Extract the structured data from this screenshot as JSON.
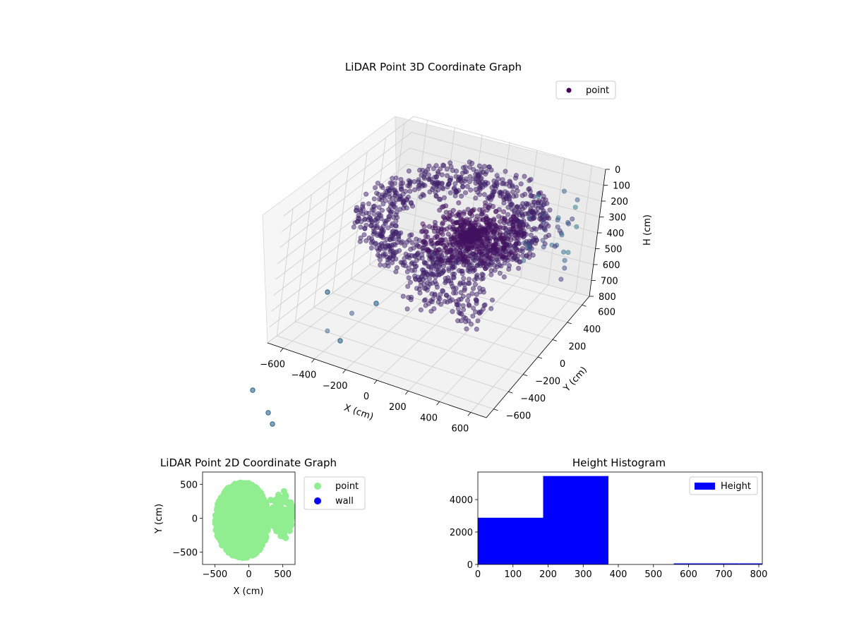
{
  "chart_data": [
    {
      "type": "scatter",
      "projection": "3d",
      "title": "LiDAR Point 3D Coordinate Graph",
      "xlabel": "X (cm)",
      "ylabel": "Y (cm)",
      "zlabel": "H (cm)",
      "xlim": [
        -700,
        700
      ],
      "ylim": [
        -700,
        700
      ],
      "zlim": [
        0,
        800
      ],
      "z_inverted": true,
      "x_ticks": [
        "−600",
        "−400",
        "−200",
        "0",
        "200",
        "400",
        "600"
      ],
      "y_ticks": [
        "−600",
        "−400",
        "−200",
        "0",
        "200",
        "400",
        "600"
      ],
      "z_ticks": [
        "0",
        "100",
        "200",
        "300",
        "400",
        "500",
        "600",
        "700",
        "800"
      ],
      "grid": true,
      "legend": {
        "placement": "upper-right",
        "entries": [
          "point"
        ],
        "marker_color": "#440154"
      },
      "colormap": "viridis",
      "series": [
        {
          "name": "point",
          "cluster_description": "dense ring of points around the sensor, heights 200-370 cm, plus sparse outliers down to 800 cm"
        }
      ]
    },
    {
      "type": "scatter",
      "title": "LiDAR Point 2D Coordinate Graph",
      "xlabel": "X (cm)",
      "ylabel": "Y (cm)",
      "xlim": [
        -680,
        680
      ],
      "ylim": [
        -680,
        680
      ],
      "x_ticks": [
        "−500",
        "0",
        "500"
      ],
      "y_ticks": [
        "−500",
        "0",
        "500"
      ],
      "legend": {
        "placement": "outside-right",
        "entries": [
          {
            "name": "point",
            "color": "#90ee90"
          },
          {
            "name": "wall",
            "color": "#0000ff"
          }
        ]
      }
    },
    {
      "type": "bar",
      "subtype": "histogram",
      "title": "Height Histogram",
      "xlim": [
        0,
        810
      ],
      "ylim": [
        0,
        5700
      ],
      "x_ticks": [
        "0",
        "100",
        "200",
        "300",
        "400",
        "500",
        "600",
        "700",
        "800"
      ],
      "y_ticks": [
        "0",
        "2000",
        "4000"
      ],
      "bin_edges": [
        0,
        186,
        372,
        558,
        744,
        810
      ],
      "counts": [
        2880,
        5450,
        0,
        25,
        25
      ],
      "color": "#0000ff",
      "legend": {
        "placement": "upper-right",
        "entries": [
          "Height"
        ]
      }
    }
  ]
}
